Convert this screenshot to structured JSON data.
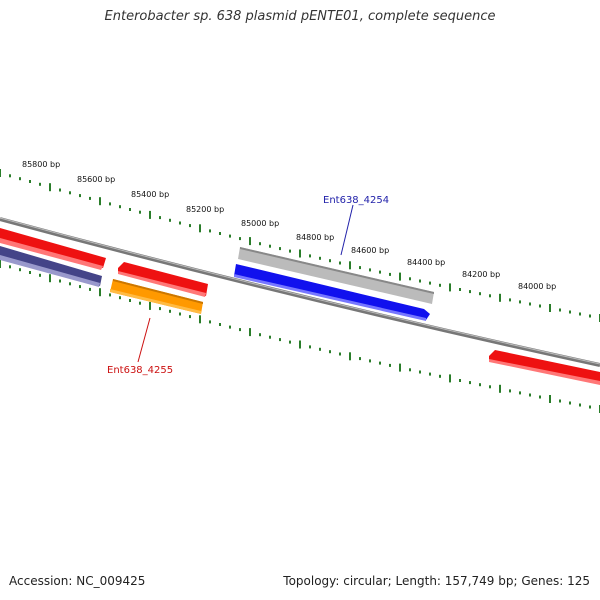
{
  "title": "Enterobacter sp. 638 plasmid pENTE01, complete sequence",
  "footer": {
    "accession": "Accession: NC_009425",
    "summary": "Topology: circular; Length: 157,749 bp; Genes: 125"
  },
  "ruler": {
    "labels": [
      "85800 bp",
      "85600 bp",
      "85400 bp",
      "85200 bp",
      "85000 bp",
      "84800 bp",
      "84600 bp",
      "84400 bp",
      "84200 bp",
      "84000 bp"
    ],
    "tick_color": "#2a7d2a"
  },
  "genes": [
    {
      "id": "Ent638_4254",
      "label": "Ent638_4254",
      "label_color": "#2222aa"
    },
    {
      "id": "Ent638_4255",
      "label": "Ent638_4255",
      "label_color": "#cc1111"
    }
  ],
  "colors": {
    "backbone": "#808080",
    "gene_red": "#ee1111",
    "gene_blue": "#1111ee",
    "gene_gray": "#bbbbbb",
    "gene_orange": "#ff9900",
    "gene_navy": "#444488"
  }
}
